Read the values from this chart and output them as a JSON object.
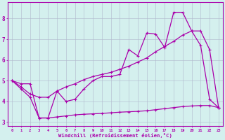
{
  "xlabel": "Windchill (Refroidissement éolien,°C)",
  "bg_color": "#d4f0ee",
  "line_color": "#aa00aa",
  "grid_color": "#b0b8cc",
  "line1_x": [
    0,
    1,
    2,
    3,
    4,
    5,
    6,
    7,
    8,
    9,
    10,
    11,
    12,
    13,
    14,
    15,
    16,
    17,
    18,
    19,
    20,
    21,
    22,
    23
  ],
  "line1_y": [
    5.0,
    4.6,
    4.2,
    3.2,
    3.2,
    4.5,
    4.0,
    4.1,
    4.6,
    5.0,
    5.2,
    5.2,
    5.3,
    6.5,
    6.2,
    7.3,
    7.25,
    6.6,
    8.3,
    8.3,
    7.4,
    6.7,
    4.1,
    3.7
  ],
  "line2_x": [
    0,
    1,
    2,
    3,
    4,
    5,
    6,
    7,
    8,
    9,
    10,
    11,
    12,
    13,
    14,
    15,
    16,
    17,
    18,
    19,
    20,
    21,
    22,
    23
  ],
  "line2_y": [
    5.0,
    4.7,
    4.35,
    4.2,
    4.2,
    4.5,
    4.7,
    4.85,
    5.05,
    5.2,
    5.3,
    5.4,
    5.55,
    5.7,
    5.9,
    6.1,
    6.4,
    6.65,
    6.9,
    7.2,
    7.4,
    7.4,
    6.5,
    3.7
  ],
  "line3_x": [
    0,
    1,
    2,
    3,
    4,
    5,
    6,
    7,
    8,
    9,
    10,
    11,
    12,
    13,
    14,
    15,
    16,
    17,
    18,
    19,
    20,
    21,
    22,
    23
  ],
  "line3_y": [
    5.0,
    4.85,
    4.85,
    3.2,
    3.2,
    3.25,
    3.3,
    3.35,
    3.38,
    3.4,
    3.42,
    3.45,
    3.48,
    3.5,
    3.52,
    3.55,
    3.6,
    3.65,
    3.7,
    3.75,
    3.78,
    3.8,
    3.8,
    3.7
  ],
  "xlim": [
    -0.5,
    23.5
  ],
  "ylim": [
    2.8,
    8.8
  ],
  "yticks": [
    3,
    4,
    5,
    6,
    7,
    8
  ],
  "xticks": [
    0,
    1,
    2,
    3,
    4,
    5,
    6,
    7,
    8,
    9,
    10,
    11,
    12,
    13,
    14,
    15,
    16,
    17,
    18,
    19,
    20,
    21,
    22,
    23
  ]
}
